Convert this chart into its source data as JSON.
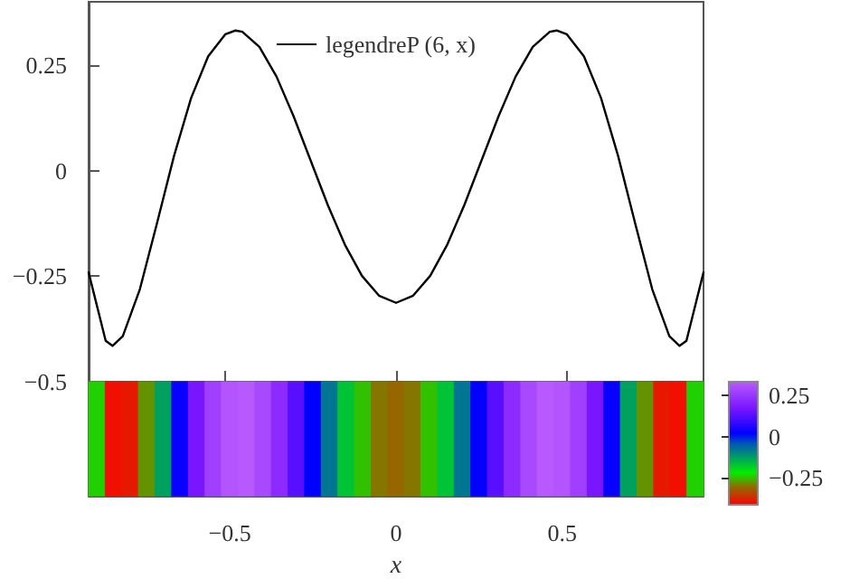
{
  "chart_data": [
    {
      "type": "line",
      "x": [
        -0.9,
        -0.85,
        -0.83,
        -0.8,
        -0.75,
        -0.7,
        -0.65,
        -0.6,
        -0.55,
        -0.5,
        -0.47,
        -0.45,
        -0.4,
        -0.35,
        -0.3,
        -0.25,
        -0.2,
        -0.15,
        -0.1,
        -0.05,
        0,
        0.05,
        0.1,
        0.15,
        0.2,
        0.25,
        0.3,
        0.35,
        0.4,
        0.45,
        0.47,
        0.5,
        0.55,
        0.6,
        0.65,
        0.7,
        0.75,
        0.8,
        0.83,
        0.85,
        0.9
      ],
      "series": [
        {
          "name": "legendreP (6, x)",
          "color": "#000000",
          "values": [
            -0.241,
            -0.403,
            -0.415,
            -0.392,
            -0.281,
            -0.125,
            0.035,
            0.172,
            0.271,
            0.323,
            0.332,
            0.329,
            0.293,
            0.223,
            0.129,
            0.024,
            -0.081,
            -0.175,
            -0.249,
            -0.296,
            -0.313,
            -0.296,
            -0.249,
            -0.175,
            -0.081,
            0.024,
            0.129,
            0.223,
            0.293,
            0.329,
            0.332,
            0.323,
            0.271,
            0.172,
            0.035,
            -0.125,
            -0.281,
            -0.392,
            -0.415,
            -0.403,
            -0.241
          ]
        }
      ],
      "xlim": [
        -0.9,
        0.9
      ],
      "xticks": [
        -0.5,
        0,
        0.5
      ],
      "ylim": [
        -0.5,
        0.4
      ],
      "yticks": [
        {
          "value": -0.5,
          "label": "−0.5"
        },
        {
          "value": -0.25,
          "label": "−0.25"
        },
        0,
        0.25
      ],
      "tick_labels": "y",
      "legend": "top",
      "marker": "none",
      "line_style": "solid"
    },
    {
      "type": "heatmap",
      "categories": [
        null,
        null,
        null,
        null,
        null,
        null,
        null,
        null,
        "−0.5",
        null,
        null,
        null,
        null,
        null,
        null,
        null,
        null,
        null,
        "0",
        null,
        null,
        null,
        null,
        null,
        null,
        null,
        null,
        null,
        "0.5",
        null,
        null,
        null,
        null,
        null,
        null,
        null,
        null
      ],
      "y_categories": [
        null
      ],
      "cells": [
        [
          -0.24,
          -0.4,
          -0.39,
          -0.28,
          -0.13,
          0.03,
          0.17,
          0.27,
          0.32,
          0.33,
          0.29,
          0.22,
          0.13,
          0.02,
          -0.08,
          -0.17,
          -0.25,
          -0.3,
          -0.31,
          -0.3,
          -0.25,
          -0.17,
          -0.08,
          0.02,
          0.13,
          0.22,
          0.29,
          0.33,
          0.32,
          0.27,
          0.17,
          0.03,
          -0.13,
          -0.28,
          -0.39,
          -0.4,
          -0.24
        ]
      ],
      "clim": [
        -0.415,
        0.333
      ],
      "cticks": [
        {
          "value": -0.25,
          "label": "−0.25"
        },
        0,
        0.25
      ],
      "xlabel": "x"
    }
  ]
}
